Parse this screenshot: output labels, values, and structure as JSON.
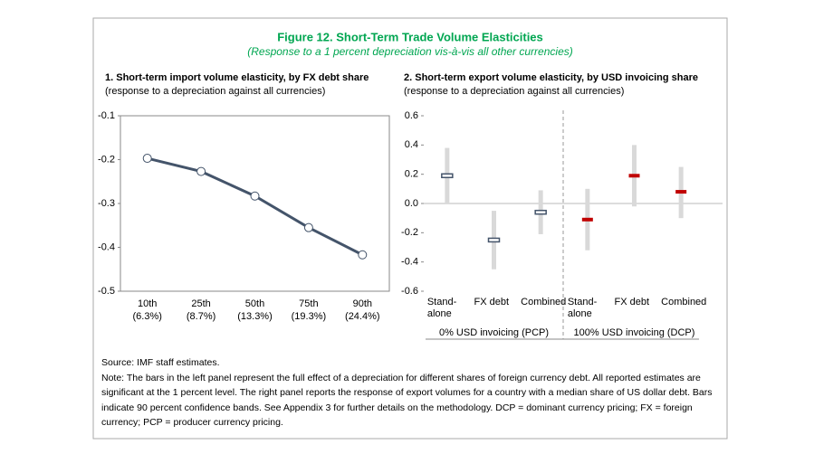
{
  "figure": {
    "title": "Figure 12. Short-Term Trade Volume Elasticities",
    "subtitle": "(Response to a 1 percent depreciation vis-à-vis all other currencies)",
    "source": "Source: IMF staff estimates.",
    "note": "Note: The bars in the left panel represent the full effect of a depreciation for different shares of foreign currency debt. All reported estimates are significant at the 1 percent level. The right panel reports the response of export volumes for a country with a median share of US dollar debt. Bars indicate 90 percent confidence bands. See Appendix 3 for further details on the methodology. DCP = dominant currency pricing; FX = foreign currency; PCP = producer currency pricing."
  },
  "chart_data": [
    {
      "type": "line",
      "title": "1. Short-term import volume elasticity, by FX debt share",
      "subtitle": "(response to a depreciation against all currencies)",
      "categories": [
        "10th",
        "25th",
        "50th",
        "75th",
        "90th"
      ],
      "category_sublabels": [
        "(6.3%)",
        "(8.7%)",
        "(13.3%)",
        "(19.3%)",
        "(24.4%)"
      ],
      "values": [
        -0.197,
        -0.227,
        -0.283,
        -0.355,
        -0.417
      ],
      "color": "#44546a",
      "ylim": [
        -0.5,
        -0.1
      ],
      "yticks": [
        -0.5,
        -0.4,
        -0.3,
        -0.2,
        -0.1
      ]
    },
    {
      "type": "errorbar",
      "title": "2. Short-term export volume elasticity, by USD invoicing share",
      "subtitle": "(response to a depreciation against all currencies)",
      "ylim": [
        -0.6,
        0.6
      ],
      "yticks": [
        -0.6,
        -0.4,
        -0.2,
        {
          "value": 0,
          "label": "0.0"
        },
        0.2,
        0.4,
        0.6
      ],
      "groups": [
        {
          "label": "0% USD invoicing (PCP)",
          "color": "#44546a",
          "hollow": true,
          "categories": [
            "Stand-alone",
            "FX debt",
            "Combined"
          ],
          "values": [
            0.19,
            -0.25,
            -0.06
          ],
          "lower": [
            0.0,
            -0.45,
            -0.21
          ],
          "upper": [
            0.38,
            -0.05,
            0.09
          ]
        },
        {
          "label": "100% USD invoicing (DCP)",
          "color": "#c00000",
          "hollow": false,
          "categories": [
            "Stand-alone",
            "FX debt",
            "Combined"
          ],
          "values": [
            -0.11,
            0.19,
            0.08
          ],
          "lower": [
            -0.32,
            -0.02,
            -0.1
          ],
          "upper": [
            0.1,
            0.4,
            0.25
          ]
        }
      ]
    }
  ]
}
